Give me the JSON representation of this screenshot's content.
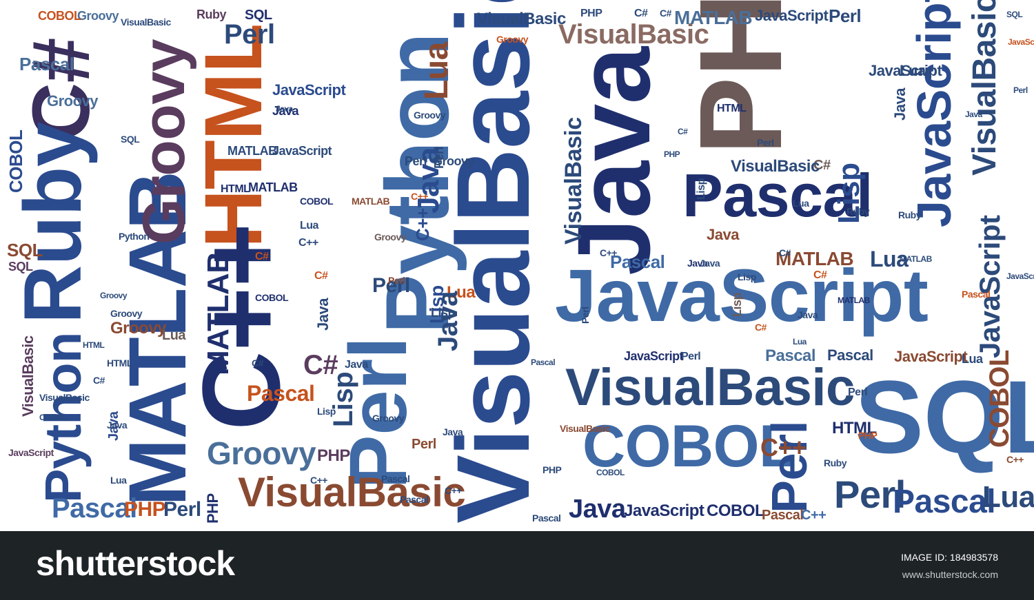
{
  "palette": {
    "navy": "#1f2f6e",
    "blue": "#2b4b8f",
    "mid_blue": "#3f6aa6",
    "steel": "#4a6f99",
    "purple": "#5a3c5e",
    "orange": "#c6521e",
    "rust": "#8a4a32",
    "taupe": "#6b5a58",
    "footer_bg": "#1e2326"
  },
  "words": [
    "C#",
    "Ruby",
    "Python",
    "MATLAB",
    "Groovy",
    "HTML",
    "C++",
    "Perl",
    "VisualBasic",
    "Python",
    "Java",
    "PHP",
    "Pascal",
    "JavaScript",
    "VisualBasic",
    "SQL",
    "COBOL",
    "Perl",
    "Perl",
    "Pascal",
    "Lua",
    "JavaScript",
    "VisualBasic",
    "VisualBasic",
    "VisualBasic",
    "JavaScript",
    "VisualBasic",
    "Lisp",
    "Java",
    "Lua",
    "MATLAB",
    "COBOL",
    "Perl",
    "Groovy",
    "Pascal",
    "Java",
    "PHP",
    "Pascal",
    "PHP",
    "Perl",
    "Pascal",
    "Java",
    "JavaScript",
    "COBOL",
    "Pascal",
    "C++",
    "MATLAB",
    "Lua",
    "Perl",
    "Java",
    "JavaScript",
    "Perl",
    "JavaScript",
    "Lisp",
    "Lua",
    "Java",
    "COBOL",
    "C++",
    "Groovy",
    "Groovy",
    "Lua",
    "Java",
    "Java",
    "Lisp",
    "Perl",
    "Lisp",
    "Pascal",
    "C#",
    "Ruby",
    "SQL",
    "Perl",
    "Groovy",
    "Perl",
    "JavaScript",
    "MATLAB",
    "C#",
    "JavaScript",
    "VisualBasic",
    "C++",
    "Lua",
    "SQL",
    "COBOL",
    "Pascal",
    "C#",
    "Lisp",
    "Perl",
    "Python",
    "SQL",
    "Perl",
    "Java",
    "VisualBasic",
    "MATLAB",
    "HTML",
    "MATLAB",
    "COBOL",
    "MATLAB",
    "C++",
    "C#",
    "Perl",
    "Groovy",
    "C++",
    "Groovy",
    "Pascal",
    "C#",
    "JavaScript",
    "Lua",
    "COBOL",
    "Pascal",
    "PHP",
    "Ruby",
    "Groovy",
    "C#",
    "VisualBasic",
    "C#",
    "JavaScript",
    "PHP",
    "C#",
    "Lua",
    "Java",
    "Groovy",
    "MATLAB",
    "Groovy",
    "HTML",
    "C#",
    "Lua",
    "Groovy",
    "Java",
    "JavaScript",
    "Pascal",
    "Lua",
    "Java",
    "Perl",
    "Lisp",
    "VisualBasic",
    "SQL",
    "HTML",
    "Ruby",
    "C#",
    "Pascal",
    "Ruby",
    "Java",
    "Java",
    "Lisp",
    "Java",
    "MATLAB",
    "Java",
    "HTML",
    "PHP",
    "C#",
    "C++",
    "Perl",
    "VisualBasic",
    "COBOL",
    "PHP",
    "HTML",
    "COBOL",
    "JavaScript",
    "Pascal",
    "Pascal",
    "C++",
    "C++",
    "Lua",
    "JavaScript",
    "Perl",
    "Java",
    "C#",
    "VisualBasic",
    "SQL",
    "Groovy",
    "PHP",
    "C++",
    "Lisp"
  ],
  "watermark": {
    "text": "shutterstock"
  },
  "footer": {
    "logo": "shutterstock",
    "image_id": "IMAGE ID: 184983578",
    "url": "www.shutterstock.com"
  }
}
